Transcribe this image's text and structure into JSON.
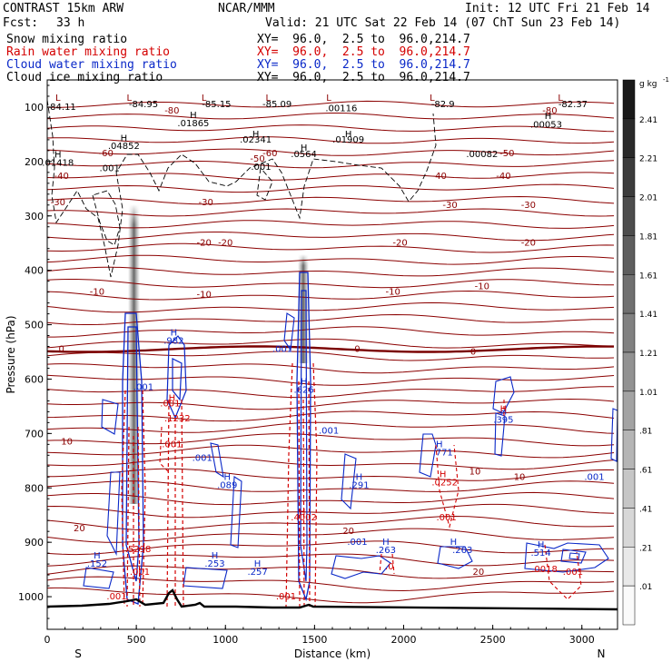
{
  "header": {
    "model": "CONTRAST 15km ARW",
    "center": "NCAR/MMM",
    "init": "Init: 12 UTC Fri 21 Feb 14",
    "fcst_label": "Fcst:",
    "fcst_value": "33 h",
    "valid": "Valid: 21 UTC Sat 22 Feb 14 (07 ChT Sun 23 Feb 14)",
    "fields": [
      {
        "label": "Snow mixing ratio",
        "xy": "XY=  96.0,  2.5 to  96.0,214.7",
        "color": "#000000"
      },
      {
        "label": "Rain water mixing ratio",
        "xy": "XY=  96.0,  2.5 to  96.0,214.7",
        "color": "#d40000"
      },
      {
        "label": "Cloud water mixing ratio",
        "xy": "XY=  96.0,  2.5 to  96.0,214.7",
        "color": "#0a28c8"
      },
      {
        "label": "Cloud ice mixing ratio",
        "xy": "XY=  96.0,  2.5 to  96.0,214.7",
        "color": "#000000"
      }
    ]
  },
  "chart_data": {
    "type": "heatmap",
    "xlabel": "Distance (km)",
    "ylabel": "Pressure (hPa)",
    "xlim": [
      0,
      3200
    ],
    "ylim": [
      1060,
      50
    ],
    "x_ticks": [
      0,
      500,
      1000,
      1500,
      2000,
      2500,
      3000
    ],
    "y_ticks": [
      100,
      200,
      300,
      400,
      500,
      600,
      700,
      800,
      900,
      1000
    ],
    "x_end_labels": {
      "left": "S",
      "right": "N"
    },
    "colorbar": {
      "unit": "g kg",
      "unit_exp": "-1",
      "levels": [
        "2.41",
        "2.21",
        "2.01",
        "1.81",
        "1.61",
        "1.41",
        "1.21",
        "1.01",
        ".81",
        ".61",
        ".41",
        ".21",
        ".01"
      ]
    },
    "temperature_contours": [
      {
        "label": "-80",
        "p": 128
      },
      {
        "label": "-50",
        "p": 190
      },
      {
        "label": "-40",
        "p": 232
      },
      {
        "label": "-30",
        "p": 280
      },
      {
        "label": "-20",
        "p": 355
      },
      {
        "label": "-10",
        "p": 435
      },
      {
        "label": "0",
        "p": 545
      },
      {
        "label": "10",
        "p": 760
      },
      {
        "label": "20",
        "p": 880
      }
    ],
    "annotations": [
      {
        "text": "L",
        "x": 60,
        "p": 88,
        "color": "#8b0000"
      },
      {
        "text": "-84.11",
        "x": 80,
        "p": 105,
        "color": "#000000"
      },
      {
        "text": "L",
        "x": 460,
        "p": 88,
        "color": "#8b0000"
      },
      {
        "text": "-84.95",
        "x": 540,
        "p": 100,
        "color": "#000000"
      },
      {
        "text": "L",
        "x": 880,
        "p": 88,
        "color": "#8b0000"
      },
      {
        "text": "-85.15",
        "x": 950,
        "p": 100,
        "color": "#000000"
      },
      {
        "text": "L",
        "x": 1240,
        "p": 88,
        "color": "#8b0000"
      },
      {
        "text": "-85.09",
        "x": 1290,
        "p": 100,
        "color": "#000000"
      },
      {
        "text": ".00116",
        "x": 1650,
        "p": 108,
        "color": "#000000"
      },
      {
        "text": "L",
        "x": 1580,
        "p": 88,
        "color": "#8b0000"
      },
      {
        "text": "-82.9",
        "x": 2220,
        "p": 100,
        "color": "#000000"
      },
      {
        "text": "L",
        "x": 2160,
        "p": 88,
        "color": "#8b0000"
      },
      {
        "text": "-82.37",
        "x": 2950,
        "p": 100,
        "color": "#000000"
      },
      {
        "text": "L",
        "x": 2880,
        "p": 88,
        "color": "#8b0000"
      },
      {
        "text": "-80",
        "x": 700,
        "p": 112,
        "color": "#8b0000"
      },
      {
        "text": "-80",
        "x": 2820,
        "p": 112,
        "color": "#8b0000"
      },
      {
        "text": "H",
        "x": 820,
        "p": 120,
        "color": "#000000"
      },
      {
        "text": ".01865",
        "x": 820,
        "p": 135,
        "color": "#000000"
      },
      {
        "text": "H",
        "x": 2810,
        "p": 122,
        "color": "#000000"
      },
      {
        "text": ".00053",
        "x": 2800,
        "p": 138,
        "color": "#000000"
      },
      {
        "text": "H",
        "x": 1170,
        "p": 155,
        "color": "#000000"
      },
      {
        "text": ".02341",
        "x": 1170,
        "p": 165,
        "color": "#000000"
      },
      {
        "text": "H",
        "x": 1690,
        "p": 155,
        "color": "#000000"
      },
      {
        "text": ".01909",
        "x": 1690,
        "p": 165,
        "color": "#000000"
      },
      {
        "text": "H",
        "x": 430,
        "p": 163,
        "color": "#000000"
      },
      {
        "text": ".04852",
        "x": 430,
        "p": 177,
        "color": "#000000"
      },
      {
        "text": "H",
        "x": 1440,
        "p": 180,
        "color": "#000000"
      },
      {
        "text": ".0564",
        "x": 1440,
        "p": 192,
        "color": "#000000"
      },
      {
        "text": ".00082",
        "x": 2440,
        "p": 192,
        "color": "#000000"
      },
      {
        "text": "H",
        "x": 60,
        "p": 193,
        "color": "#000000"
      },
      {
        "text": ".01418",
        "x": 60,
        "p": 208,
        "color": "#000000"
      },
      {
        "text": ".001",
        "x": 350,
        "p": 218,
        "color": "#000000"
      },
      {
        "text": ".001",
        "x": 1200,
        "p": 215,
        "color": "#000000"
      },
      {
        "text": "-60",
        "x": 330,
        "p": 190,
        "color": "#8b0000"
      },
      {
        "text": "-60",
        "x": 1250,
        "p": 190,
        "color": "#8b0000"
      },
      {
        "text": "-50",
        "x": 1180,
        "p": 200,
        "color": "#8b0000"
      },
      {
        "text": "-50",
        "x": 2580,
        "p": 190,
        "color": "#8b0000"
      },
      {
        "text": "-40",
        "x": 80,
        "p": 232,
        "color": "#8b0000"
      },
      {
        "text": "-40",
        "x": 2200,
        "p": 232,
        "color": "#8b0000"
      },
      {
        "text": "-40",
        "x": 2560,
        "p": 232,
        "color": "#8b0000"
      },
      {
        "text": "-30",
        "x": 60,
        "p": 280,
        "color": "#8b0000"
      },
      {
        "text": "-30",
        "x": 890,
        "p": 280,
        "color": "#8b0000"
      },
      {
        "text": "-30",
        "x": 2260,
        "p": 285,
        "color": "#8b0000"
      },
      {
        "text": "-30",
        "x": 2700,
        "p": 285,
        "color": "#8b0000"
      },
      {
        "text": "-20",
        "x": 880,
        "p": 355,
        "color": "#8b0000"
      },
      {
        "text": "-20",
        "x": 1000,
        "p": 355,
        "color": "#8b0000"
      },
      {
        "text": "-20",
        "x": 1980,
        "p": 355,
        "color": "#8b0000"
      },
      {
        "text": "-20",
        "x": 2700,
        "p": 355,
        "color": "#8b0000"
      },
      {
        "text": "-10",
        "x": 280,
        "p": 445,
        "color": "#8b0000"
      },
      {
        "text": "-10",
        "x": 880,
        "p": 450,
        "color": "#8b0000"
      },
      {
        "text": "-10",
        "x": 1940,
        "p": 445,
        "color": "#8b0000"
      },
      {
        "text": "-10",
        "x": 2440,
        "p": 435,
        "color": "#8b0000"
      },
      {
        "text": "0",
        "x": 80,
        "p": 550,
        "color": "#8b0000"
      },
      {
        "text": "0",
        "x": 1740,
        "p": 550,
        "color": "#8b0000"
      },
      {
        "text": "0",
        "x": 2390,
        "p": 555,
        "color": "#8b0000"
      },
      {
        "text": "10",
        "x": 110,
        "p": 720,
        "color": "#8b0000"
      },
      {
        "text": "10",
        "x": 2400,
        "p": 775,
        "color": "#8b0000"
      },
      {
        "text": "10",
        "x": 2650,
        "p": 785,
        "color": "#8b0000"
      },
      {
        "text": "20",
        "x": 180,
        "p": 880,
        "color": "#8b0000"
      },
      {
        "text": "20",
        "x": 1690,
        "p": 885,
        "color": "#8b0000"
      },
      {
        "text": "20",
        "x": 2420,
        "p": 960,
        "color": "#8b0000"
      },
      {
        "text": "H",
        "x": 710,
        "p": 520,
        "color": "#0a28c8"
      },
      {
        "text": ".982",
        "x": 710,
        "p": 535,
        "color": "#0a28c8"
      },
      {
        "text": ".001",
        "x": 540,
        "p": 620,
        "color": "#0a28c8"
      },
      {
        "text": ".001",
        "x": 1320,
        "p": 550,
        "color": "#0a28c8"
      },
      {
        "text": "H",
        "x": 1440,
        "p": 610,
        "color": "#0a28c8"
      },
      {
        "text": ".626",
        "x": 1440,
        "p": 625,
        "color": "#0a28c8"
      },
      {
        "text": ".001",
        "x": 1580,
        "p": 700,
        "color": "#0a28c8"
      },
      {
        "text": "H",
        "x": 2560,
        "p": 665,
        "color": "#0a28c8"
      },
      {
        "text": ".395",
        "x": 2560,
        "p": 680,
        "color": "#0a28c8"
      },
      {
        "text": "H",
        "x": 2200,
        "p": 725,
        "color": "#0a28c8"
      },
      {
        "text": ".771",
        "x": 2220,
        "p": 740,
        "color": "#0a28c8"
      },
      {
        "text": "H",
        "x": 1750,
        "p": 785,
        "color": "#0a28c8"
      },
      {
        "text": ".291",
        "x": 1750,
        "p": 800,
        "color": "#0a28c8"
      },
      {
        "text": "H",
        "x": 1010,
        "p": 785,
        "color": "#0a28c8"
      },
      {
        "text": ".089",
        "x": 1010,
        "p": 800,
        "color": "#0a28c8"
      },
      {
        "text": ".001",
        "x": 870,
        "p": 750,
        "color": "#0a28c8"
      },
      {
        "text": ".001",
        "x": 3070,
        "p": 785,
        "color": "#0a28c8"
      },
      {
        "text": "H",
        "x": 280,
        "p": 930,
        "color": "#0a28c8"
      },
      {
        "text": ".152",
        "x": 280,
        "p": 945,
        "color": "#0a28c8"
      },
      {
        "text": "H",
        "x": 940,
        "p": 930,
        "color": "#0a28c8"
      },
      {
        "text": ".253",
        "x": 940,
        "p": 945,
        "color": "#0a28c8"
      },
      {
        "text": "H",
        "x": 1180,
        "p": 945,
        "color": "#0a28c8"
      },
      {
        "text": ".257",
        "x": 1180,
        "p": 960,
        "color": "#0a28c8"
      },
      {
        "text": ".001",
        "x": 1740,
        "p": 905,
        "color": "#0a28c8"
      },
      {
        "text": "H",
        "x": 1900,
        "p": 905,
        "color": "#0a28c8"
      },
      {
        "text": ".263",
        "x": 1900,
        "p": 920,
        "color": "#0a28c8"
      },
      {
        "text": "H",
        "x": 2280,
        "p": 905,
        "color": "#0a28c8"
      },
      {
        "text": ".263",
        "x": 2330,
        "p": 920,
        "color": "#0a28c8"
      },
      {
        "text": "H",
        "x": 2770,
        "p": 910,
        "color": "#0a28c8"
      },
      {
        "text": ".514",
        "x": 2770,
        "p": 925,
        "color": "#0a28c8"
      },
      {
        "text": "H",
        "x": 2560,
        "p": 660,
        "color": "#d40000"
      },
      {
        "text": "H",
        "x": 700,
        "p": 640,
        "color": "#d40000"
      },
      {
        "text": ".001",
        "x": 690,
        "p": 650,
        "color": "#d40000"
      },
      {
        "text": ".1232",
        "x": 730,
        "p": 678,
        "color": "#d40000"
      },
      {
        "text": ".001",
        "x": 700,
        "p": 725,
        "color": "#d40000"
      },
      {
        "text": "H",
        "x": 1430,
        "p": 850,
        "color": "#d40000"
      },
      {
        "text": ".4002",
        "x": 1440,
        "p": 860,
        "color": "#d40000"
      },
      {
        "text": "H",
        "x": 2220,
        "p": 780,
        "color": "#d40000"
      },
      {
        "text": ".0252",
        "x": 2230,
        "p": 795,
        "color": "#d40000"
      },
      {
        "text": ".001",
        "x": 2240,
        "p": 860,
        "color": "#d40000"
      },
      {
        "text": ".5298",
        "x": 510,
        "p": 918,
        "color": "#d40000"
      },
      {
        "text": ".001",
        "x": 520,
        "p": 960,
        "color": "#d40000"
      },
      {
        "text": ".001",
        "x": 390,
        "p": 1005,
        "color": "#d40000"
      },
      {
        "text": ".001",
        "x": 1340,
        "p": 1005,
        "color": "#d40000"
      },
      {
        "text": ".0018",
        "x": 2790,
        "p": 955,
        "color": "#d40000"
      },
      {
        "text": ".001",
        "x": 2950,
        "p": 960,
        "color": "#d40000"
      },
      {
        "text": ".0",
        "x": 1920,
        "p": 950,
        "color": "#d40000"
      }
    ]
  }
}
